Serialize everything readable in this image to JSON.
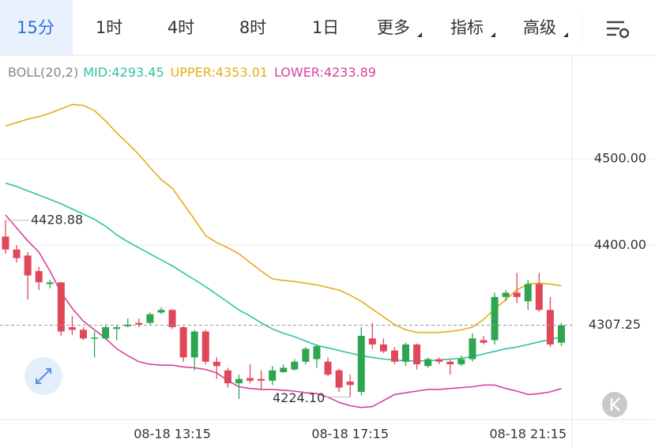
{
  "tabs": [
    "15分",
    "1时",
    "4时",
    "8时",
    "1日",
    "更多",
    "指标",
    "高级"
  ],
  "chart_data": {
    "type": "candlestick",
    "indicator": "BOLL(20,2)",
    "categories": [
      null,
      null,
      null,
      null,
      null,
      null,
      null,
      null,
      null,
      null,
      null,
      null,
      null,
      null,
      null,
      "08-18 13:15",
      null,
      null,
      null,
      null,
      null,
      null,
      null,
      null,
      null,
      null,
      null,
      null,
      null,
      null,
      null,
      "08-18 17:15",
      null,
      null,
      null,
      null,
      null,
      null,
      null,
      null,
      null,
      null,
      null,
      null,
      null,
      null,
      null,
      "08-18 21:15",
      null,
      null,
      null
    ],
    "open": [
      4410,
      4395,
      4388,
      4370,
      4355,
      4357,
      4305,
      4302,
      4292,
      4292,
      4303,
      4306,
      4310,
      4310,
      4322,
      4325,
      4305,
      4270,
      4300,
      4265,
      4255,
      4240,
      4246,
      4245,
      4243,
      4253,
      4256,
      4265,
      4268,
      4265,
      4255,
      4242,
      4230,
      4292,
      4285,
      4278,
      4265,
      4285,
      4260,
      4268,
      4265,
      4262,
      4268,
      4290,
      4290,
      4340,
      4345,
      4335,
      4355,
      4325,
      4287
    ],
    "high": [
      4428.88,
      4400,
      4392,
      4375,
      4360,
      4357,
      4318,
      4305,
      4300,
      4308,
      4307,
      4315,
      4315,
      4322,
      4328,
      4326,
      4306,
      4302,
      4302,
      4270,
      4258,
      4250,
      4262,
      4255,
      4260,
      4262,
      4268,
      4282,
      4285,
      4270,
      4257,
      4250,
      4305,
      4310,
      4292,
      4282,
      4287,
      4286,
      4270,
      4270,
      4268,
      4272,
      4298,
      4295,
      4345,
      4348,
      4368,
      4360,
      4368,
      4340,
      4310
    ],
    "low": [
      4390,
      4380,
      4337,
      4348,
      4350,
      4295,
      4296,
      4290,
      4270,
      4290,
      4290,
      4305,
      4305,
      4308,
      4320,
      4303,
      4265,
      4255,
      4262,
      4245,
      4235,
      4222,
      4240,
      4232,
      4238,
      4252,
      4255,
      4262,
      4258,
      4248,
      4230,
      4224.1,
      4226,
      4280,
      4275,
      4262,
      4260,
      4256,
      4258,
      4262,
      4250,
      4260,
      4265,
      4285,
      4285,
      4335,
      4333,
      4325,
      4323,
      4282,
      4283
    ],
    "close": [
      4395,
      4385,
      4365,
      4357,
      4357,
      4300,
      4302,
      4292,
      4293,
      4305,
      4305,
      4308,
      4308,
      4320,
      4325,
      4305,
      4270,
      4300,
      4265,
      4260,
      4240,
      4245,
      4243,
      4243,
      4255,
      4258,
      4265,
      4280,
      4283,
      4250,
      4235,
      4238,
      4295,
      4285,
      4277,
      4265,
      4285,
      4262,
      4268,
      4265,
      4262,
      4268,
      4292,
      4287,
      4340,
      4345,
      4340,
      4355,
      4325,
      4285,
      4307.25
    ],
    "up_color": "#2ea650",
    "down_color": "#e0485a",
    "series": [
      {
        "name": "MID:4293.45",
        "color": "#2fc4a2",
        "values": [
          4472,
          4468,
          4463,
          4458,
          4453,
          4448,
          4442,
          4436,
          4430,
          4422,
          4412,
          4404,
          4397,
          4390,
          4383,
          4376,
          4368,
          4360,
          4352,
          4343,
          4334,
          4325,
          4318,
          4310,
          4303,
          4298,
          4294,
          4289,
          4284,
          4281,
          4278,
          4275,
          4272,
          4270,
          4268,
          4267,
          4266,
          4266,
          4266,
          4267,
          4268,
          4269,
          4271,
          4274,
          4277,
          4280,
          4282,
          4285,
          4288,
          4291,
          4293.45
        ]
      },
      {
        "name": "UPPER:4353.01",
        "color": "#e8aa1a",
        "values": [
          4538,
          4542,
          4546,
          4549,
          4553,
          4558,
          4563,
          4562,
          4556,
          4544,
          4530,
          4518,
          4505,
          4490,
          4476,
          4466,
          4448,
          4430,
          4411,
          4403,
          4397,
          4390,
          4380,
          4370,
          4361,
          4359,
          4358,
          4356,
          4354,
          4351,
          4348,
          4342,
          4335,
          4326,
          4317,
          4308,
          4302,
          4299,
          4299,
          4299,
          4300,
          4302,
          4305,
          4314,
          4326,
          4337,
          4348,
          4355,
          4356,
          4355,
          4353.01
        ]
      },
      {
        "name": "LOWER:4233.89",
        "color": "#d9409e",
        "values": [
          4435,
          4420,
          4405,
          4392,
          4370,
          4345,
          4327,
          4312,
          4302,
          4292,
          4280,
          4272,
          4265,
          4262,
          4261,
          4261,
          4259,
          4258,
          4256,
          4252,
          4243,
          4236,
          4234,
          4233,
          4233,
          4232,
          4231,
          4229,
          4228,
          4224,
          4218,
          4214,
          4212,
          4213,
          4220,
          4227,
          4229,
          4231,
          4233,
          4233,
          4234,
          4235,
          4236,
          4238,
          4238,
          4234,
          4231,
          4227,
          4228,
          4230,
          4233.89
        ]
      }
    ],
    "ylim": [
      4198,
      4620
    ],
    "yticks": [
      {
        "value": 4500,
        "label": "4500.00"
      },
      {
        "value": 4400,
        "label": "4400.00"
      }
    ],
    "grid": true,
    "last_price": 4307.25,
    "annotations": [
      {
        "value": 4428.88,
        "label": "4428.88"
      },
      {
        "value": 4224.1,
        "label": "4224.10"
      }
    ]
  }
}
